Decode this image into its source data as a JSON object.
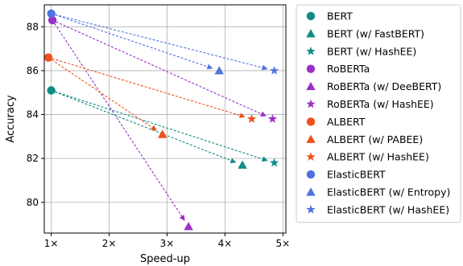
{
  "chart_data": {
    "type": "scatter",
    "title": "",
    "xlabel": "Speed-up",
    "ylabel": "Accuracy",
    "xlim": [
      0.88,
      5.05
    ],
    "ylim": [
      78.6,
      89.0
    ],
    "grid": true,
    "legend_position": "outside-right",
    "x_ticks": [
      {
        "value": 1,
        "label": "1×"
      },
      {
        "value": 2,
        "label": "2×"
      },
      {
        "value": 3,
        "label": "3×"
      },
      {
        "value": 4,
        "label": "4×"
      },
      {
        "value": 5,
        "label": "5×"
      }
    ],
    "y_ticks": [
      {
        "value": 80,
        "label": "80"
      },
      {
        "value": 82,
        "label": "82"
      },
      {
        "value": 84,
        "label": "84"
      },
      {
        "value": 86,
        "label": "86"
      },
      {
        "value": 88,
        "label": "88"
      }
    ],
    "series": [
      {
        "name": "BERT",
        "marker": "circle",
        "color": "#0f8c84",
        "x": 1.0,
        "y": 85.1
      },
      {
        "name": "BERT (w/ FastBERT)",
        "marker": "triangle",
        "color": "#0f8c84",
        "x": 4.3,
        "y": 81.7
      },
      {
        "name": "BERT (w/ HashEE)",
        "marker": "star",
        "color": "#0f8c84",
        "x": 4.85,
        "y": 81.8
      },
      {
        "name": "RoBERTa",
        "marker": "circle",
        "color": "#9b30c8",
        "x": 1.02,
        "y": 88.3
      },
      {
        "name": "RoBERTa (w/ DeeBERT)",
        "marker": "triangle",
        "color": "#9b30c8",
        "x": 3.37,
        "y": 78.9
      },
      {
        "name": "RoBERTa (w/ HashEE)",
        "marker": "star",
        "color": "#9b30c8",
        "x": 4.82,
        "y": 83.8
      },
      {
        "name": "ALBERT",
        "marker": "circle",
        "color": "#f0501c",
        "x": 0.95,
        "y": 86.6
      },
      {
        "name": "ALBERT (w/ PABEE)",
        "marker": "triangle",
        "color": "#f0501c",
        "x": 2.92,
        "y": 83.1
      },
      {
        "name": "ALBERT (w/ HashEE)",
        "marker": "star",
        "color": "#f0501c",
        "x": 4.46,
        "y": 83.8
      },
      {
        "name": "ElasticBERT",
        "marker": "circle",
        "color": "#4f74e0",
        "x": 1.0,
        "y": 88.6
      },
      {
        "name": "ElasticBERT (w/ Entropy)",
        "marker": "triangle",
        "color": "#4f74e0",
        "x": 3.9,
        "y": 86.0
      },
      {
        "name": "ElasticBERT (w/ HashEE)",
        "marker": "star",
        "color": "#4f74e0",
        "x": 4.85,
        "y": 86.0
      }
    ],
    "arrows": [
      {
        "from": [
          1.0,
          85.1
        ],
        "to": [
          4.3,
          81.7
        ],
        "color": "#0f8c84"
      },
      {
        "from": [
          1.0,
          85.1
        ],
        "to": [
          4.85,
          81.8
        ],
        "color": "#0f8c84"
      },
      {
        "from": [
          1.02,
          88.3
        ],
        "to": [
          3.37,
          78.9
        ],
        "color": "#9b30c8"
      },
      {
        "from": [
          1.02,
          88.3
        ],
        "to": [
          4.82,
          83.8
        ],
        "color": "#9b30c8"
      },
      {
        "from": [
          0.95,
          86.6
        ],
        "to": [
          2.92,
          83.1
        ],
        "color": "#f0501c"
      },
      {
        "from": [
          0.95,
          86.6
        ],
        "to": [
          4.46,
          83.8
        ],
        "color": "#f0501c"
      },
      {
        "from": [
          1.0,
          88.6
        ],
        "to": [
          3.9,
          86.0
        ],
        "color": "#4f74e0"
      },
      {
        "from": [
          1.0,
          88.6
        ],
        "to": [
          4.85,
          86.0
        ],
        "color": "#4f74e0"
      }
    ]
  }
}
